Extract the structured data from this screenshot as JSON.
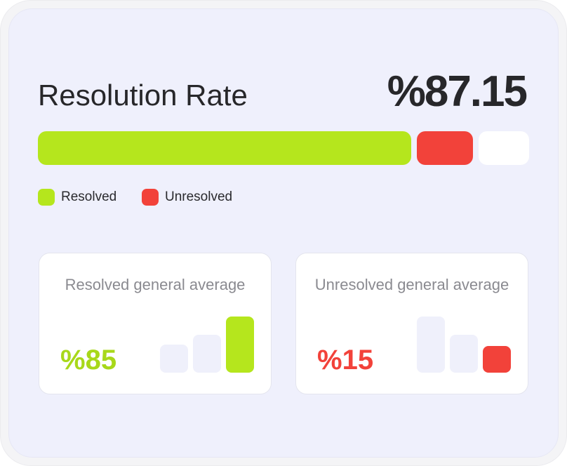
{
  "header": {
    "title": "Resolution Rate",
    "rate": "%87.15"
  },
  "progress": {
    "resolved_fraction": 0.76,
    "unresolved_fraction": 0.115,
    "remaining_fraction": 0.103
  },
  "legend": [
    {
      "label": "Resolved",
      "color": "#b5e61d"
    },
    {
      "label": "Unresolved",
      "color": "#f2423a"
    }
  ],
  "stats": [
    {
      "title": "Resolved general average",
      "value": "%85",
      "accent": "#b5e61d",
      "bars": [
        0.5,
        0.68,
        1.0
      ],
      "highlight_index": 2
    },
    {
      "title": "Unresolved general average",
      "value": "%15",
      "accent": "#f2423a",
      "bars": [
        1.0,
        0.68,
        0.48
      ],
      "highlight_index": 2
    }
  ]
}
